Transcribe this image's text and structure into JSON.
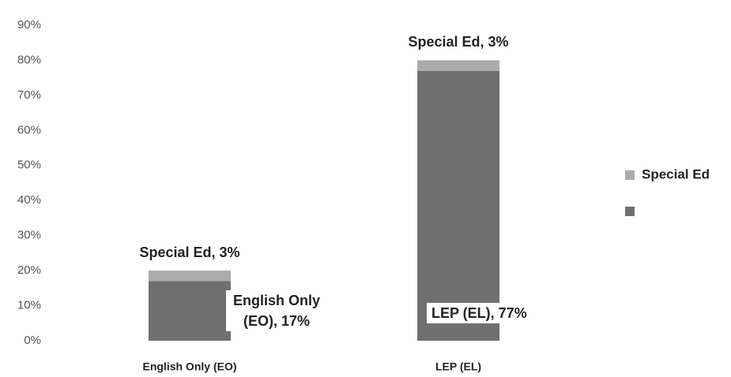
{
  "chart_data": {
    "type": "stacked_bar",
    "categories": [
      "English Only (EO)",
      "LEP (EL)"
    ],
    "series": [
      {
        "name": null,
        "color": "#707070",
        "values": [
          17,
          77
        ],
        "value_labels": [
          "English Only (EO), 17%",
          "LEP (EL), 77%"
        ]
      },
      {
        "name": "Special Ed",
        "color": "#ababab",
        "values": [
          3,
          3
        ],
        "value_labels": [
          "Special Ed, 3%",
          "Special Ed, 3%"
        ]
      }
    ],
    "ylim": [
      0,
      90
    ],
    "yticks": [
      {
        "value": 0,
        "label": "0%"
      },
      {
        "value": 10,
        "label": "10%"
      },
      {
        "value": 20,
        "label": "20%"
      },
      {
        "value": 30,
        "label": "30%"
      },
      {
        "value": 40,
        "label": "40%"
      },
      {
        "value": 50,
        "label": "50%"
      },
      {
        "value": 60,
        "label": "60%"
      },
      {
        "value": 70,
        "label": "70%"
      },
      {
        "value": 80,
        "label": "80%"
      },
      {
        "value": 90,
        "label": "90%"
      }
    ],
    "grid": false,
    "legend": "right"
  }
}
